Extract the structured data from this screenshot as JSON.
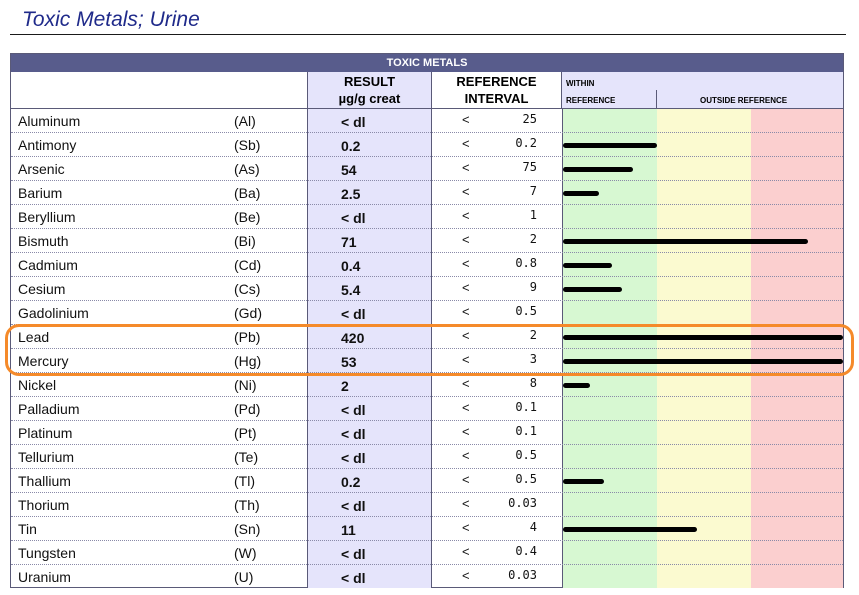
{
  "title": "Toxic Metals; Urine",
  "table": {
    "banner": "TOXIC METALS",
    "headers": {
      "result_line1": "RESULT",
      "result_line2": "µg/g creat",
      "reference_line1": "REFERENCE",
      "reference_line2": "INTERVAL",
      "within": "WITHIN",
      "reference": "REFERENCE",
      "outside": "OUTSIDE REFERENCE"
    },
    "rows": [
      {
        "name": "Aluminum",
        "symbol": "(Al)",
        "result": "< dl",
        "lt": "<",
        "ref": "25",
        "bar_fraction": 0
      },
      {
        "name": "Antimony",
        "symbol": "(Sb)",
        "result": "0.2",
        "lt": "<",
        "ref": "0.2",
        "bar_fraction": 0.335
      },
      {
        "name": "Arsenic",
        "symbol": "(As)",
        "result": "54",
        "lt": "<",
        "ref": "75",
        "bar_fraction": 0.25
      },
      {
        "name": "Barium",
        "symbol": "(Ba)",
        "result": "2.5",
        "lt": "<",
        "ref": "7",
        "bar_fraction": 0.13
      },
      {
        "name": "Beryllium",
        "symbol": "(Be)",
        "result": "< dl",
        "lt": "<",
        "ref": "1",
        "bar_fraction": 0
      },
      {
        "name": "Bismuth",
        "symbol": "(Bi)",
        "result": "71",
        "lt": "<",
        "ref": "2",
        "bar_fraction": 0.875
      },
      {
        "name": "Cadmium",
        "symbol": "(Cd)",
        "result": "0.4",
        "lt": "<",
        "ref": "0.8",
        "bar_fraction": 0.175
      },
      {
        "name": "Cesium",
        "symbol": "(Cs)",
        "result": "5.4",
        "lt": "<",
        "ref": "9",
        "bar_fraction": 0.21
      },
      {
        "name": "Gadolinium",
        "symbol": "(Gd)",
        "result": "< dl",
        "lt": "<",
        "ref": "0.5",
        "bar_fraction": 0
      },
      {
        "name": "Lead",
        "symbol": "(Pb)",
        "result": "420",
        "lt": "<",
        "ref": "2",
        "bar_fraction": 1.0
      },
      {
        "name": "Mercury",
        "symbol": "(Hg)",
        "result": "53",
        "lt": "<",
        "ref": "3",
        "bar_fraction": 1.0
      },
      {
        "name": "Nickel",
        "symbol": "(Ni)",
        "result": "2",
        "lt": "<",
        "ref": "8",
        "bar_fraction": 0.095
      },
      {
        "name": "Palladium",
        "symbol": "(Pd)",
        "result": "< dl",
        "lt": "<",
        "ref": "0.1",
        "bar_fraction": 0
      },
      {
        "name": "Platinum",
        "symbol": "(Pt)",
        "result": "< dl",
        "lt": "<",
        "ref": "0.1",
        "bar_fraction": 0
      },
      {
        "name": "Tellurium",
        "symbol": "(Te)",
        "result": "< dl",
        "lt": "<",
        "ref": "0.5",
        "bar_fraction": 0
      },
      {
        "name": "Thallium",
        "symbol": "(Tl)",
        "result": "0.2",
        "lt": "<",
        "ref": "0.5",
        "bar_fraction": 0.145
      },
      {
        "name": "Thorium",
        "symbol": "(Th)",
        "result": "< dl",
        "lt": "<",
        "ref": "0.03",
        "bar_fraction": 0
      },
      {
        "name": "Tin",
        "symbol": "(Sn)",
        "result": "11",
        "lt": "<",
        "ref": "4",
        "bar_fraction": 0.48
      },
      {
        "name": "Tungsten",
        "symbol": "(W)",
        "result": "< dl",
        "lt": "<",
        "ref": "0.4",
        "bar_fraction": 0
      },
      {
        "name": "Uranium",
        "symbol": "(U)",
        "result": "< dl",
        "lt": "<",
        "ref": "0.03",
        "bar_fraction": 0
      }
    ],
    "highlighted_rows": [
      "Lead",
      "Mercury"
    ]
  },
  "colors": {
    "title": "#1f2a8a",
    "banner": "#585c8c",
    "header_fill": "#e5e4fb",
    "zone_within": "#d7f8d2",
    "zone_outside_mid": "#fbfad0",
    "zone_outside_high": "#fbcfcf",
    "bar": "#000000",
    "highlight": "#f58a2a"
  }
}
